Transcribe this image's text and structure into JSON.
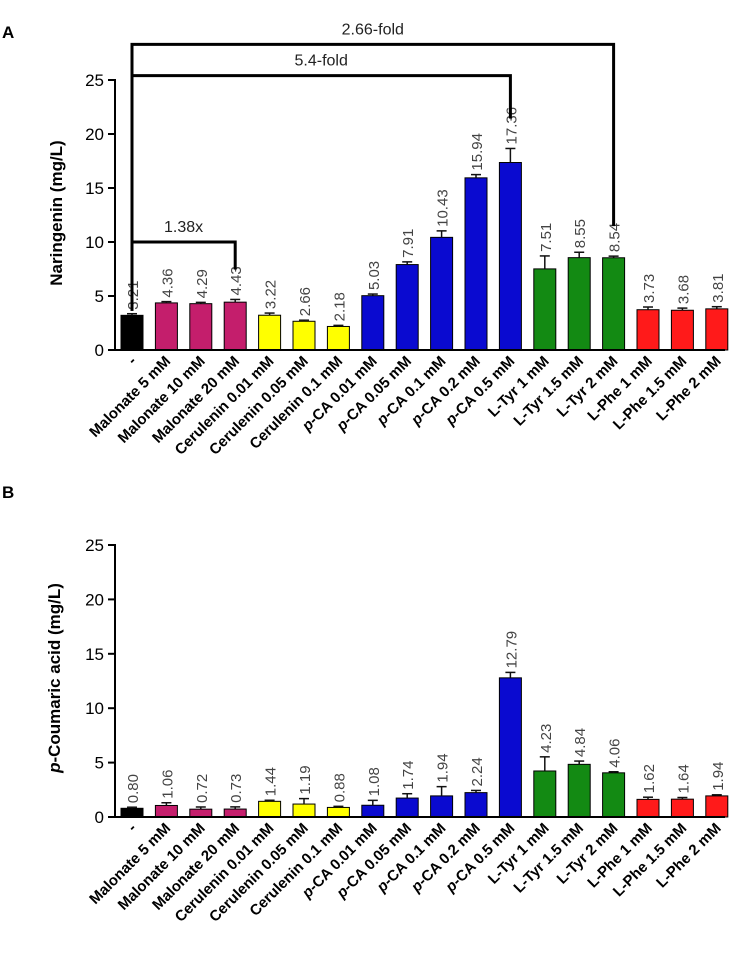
{
  "colors": {
    "control": "#000000",
    "malonate": "#c41e6c",
    "cerulenin": "#ffff00",
    "pca": "#0a0ad0",
    "ltyr": "#138a13",
    "lphe": "#ff1a1a"
  },
  "chart_data": [
    {
      "type": "bar",
      "panel": "A",
      "ylabel": "Naringenin (mg/L)",
      "ylim": [
        0,
        25
      ],
      "yticks": [
        0,
        5,
        10,
        15,
        20,
        25
      ],
      "categories": [
        "-",
        "Malonate 5 mM",
        "Malonate 10 mM",
        "Malonate 20 mM",
        "Cerulenin 0.01 mM",
        "Cerulenin 0.05 mM",
        "Cerulenin 0.1 mM",
        "p-CA 0.01 mM",
        "p-CA 0.05 mM",
        "p-CA 0.1 mM",
        "p-CA 0.2 mM",
        "p-CA 0.5 mM",
        "L-Tyr 1 mM",
        "L-Tyr 1.5 mM",
        "L-Tyr 2 mM",
        "L-Phe 1 mM",
        "L-Phe 1.5 mM",
        "L-Phe 2 mM"
      ],
      "values": [
        3.21,
        4.36,
        4.29,
        4.43,
        3.22,
        2.66,
        2.18,
        5.03,
        7.91,
        10.43,
        15.94,
        17.36,
        7.51,
        8.55,
        8.54,
        3.73,
        3.68,
        3.81
      ],
      "value_labels": [
        "3.21",
        "4.36",
        "4.29",
        "4.43",
        "3.22",
        "2.66",
        "2.18",
        "5.03",
        "7.91",
        "10.43",
        "15.94",
        "17.36",
        "7.51",
        "8.55",
        "8.54",
        "3.73",
        "3.68",
        "3.81"
      ],
      "errors": [
        0.15,
        0.12,
        0.12,
        0.25,
        0.2,
        0.1,
        0.1,
        0.15,
        0.25,
        0.6,
        0.3,
        1.3,
        1.2,
        0.5,
        0.15,
        0.25,
        0.2,
        0.2
      ],
      "groups": [
        "control",
        "malonate",
        "malonate",
        "malonate",
        "cerulenin",
        "cerulenin",
        "cerulenin",
        "pca",
        "pca",
        "pca",
        "pca",
        "pca",
        "ltyr",
        "ltyr",
        "ltyr",
        "lphe",
        "lphe",
        "lphe"
      ],
      "annotations": [
        {
          "label": "1.38x",
          "from": 0,
          "to": 3,
          "level": 10
        },
        {
          "label": "5.4-fold",
          "from": 0,
          "to": 11,
          "level": 25.4
        },
        {
          "label": "2.66-fold",
          "from": 0,
          "to": 14,
          "level": 28.3
        }
      ]
    },
    {
      "type": "bar",
      "panel": "B",
      "ylabel_prefix": "p",
      "ylabel_rest": "-Coumaric acid (mg/L)",
      "ylim": [
        0,
        25
      ],
      "yticks": [
        0,
        5,
        10,
        15,
        20,
        25
      ],
      "categories": [
        "-",
        "Malonate 5 mM",
        "Malonate 10 mM",
        "Malonate 20 mM",
        "Cerulenin 0.01 mM",
        "Cerulenin 0.05 mM",
        "Cerulenin 0.1 mM",
        "p-CA 0.01 mM",
        "p-CA 0.05 mM",
        "p-CA 0.1 mM",
        "p-CA 0.2 mM",
        "p-CA 0.5 mM",
        "L-Tyr 1 mM",
        "L-Tyr 1.5 mM",
        "L-Tyr 2 mM",
        "L-Phe 1 mM",
        "L-Phe 1.5 mM",
        "L-Phe 2 mM"
      ],
      "values": [
        0.8,
        1.06,
        0.72,
        0.73,
        1.44,
        1.19,
        0.88,
        1.08,
        1.74,
        1.94,
        2.24,
        12.79,
        4.23,
        4.84,
        4.06,
        1.62,
        1.64,
        1.94
      ],
      "value_labels": [
        "0.80",
        "1.06",
        "0.72",
        "0.73",
        "1.44",
        "1.19",
        "0.88",
        "1.08",
        "1.74",
        "1.94",
        "2.24",
        "12.79",
        "4.23",
        "4.84",
        "4.06",
        "1.62",
        "1.64",
        "1.94"
      ],
      "errors": [
        0.1,
        0.25,
        0.2,
        0.2,
        0.1,
        0.5,
        0.1,
        0.45,
        0.4,
        0.85,
        0.2,
        0.5,
        1.3,
        0.3,
        0.1,
        0.2,
        0.15,
        0.1
      ],
      "groups": [
        "control",
        "malonate",
        "malonate",
        "malonate",
        "cerulenin",
        "cerulenin",
        "cerulenin",
        "pca",
        "pca",
        "pca",
        "pca",
        "pca",
        "ltyr",
        "ltyr",
        "ltyr",
        "lphe",
        "lphe",
        "lphe"
      ]
    }
  ]
}
